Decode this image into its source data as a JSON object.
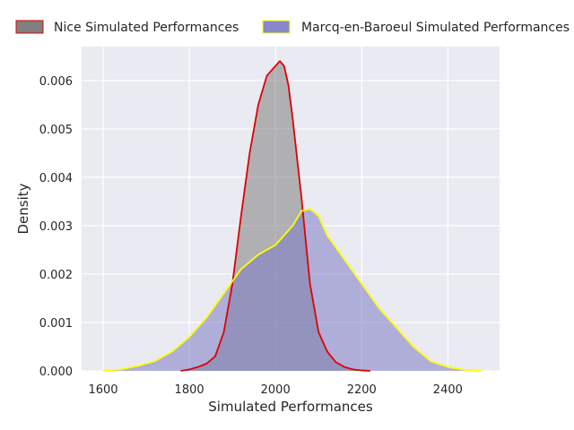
{
  "chart_data": {
    "type": "area",
    "title": "",
    "xlabel": "Simulated Performances",
    "ylabel": "Density",
    "xlim": [
      1550,
      2520
    ],
    "ylim": [
      0,
      0.0067
    ],
    "xticks": [
      1600,
      1800,
      2000,
      2200,
      2400
    ],
    "yticks": [
      0.0,
      0.001,
      0.002,
      0.003,
      0.004,
      0.005,
      0.006
    ],
    "ytick_labels": [
      "0.000",
      "0.001",
      "0.002",
      "0.003",
      "0.004",
      "0.005",
      "0.006"
    ],
    "grid": true,
    "legend_placement": "top, above plot",
    "background": "#eaeaf2",
    "series": [
      {
        "name": "Nice Simulated Performances",
        "fill": "#808080",
        "stroke": "#e00000",
        "x": [
          1780,
          1800,
          1820,
          1840,
          1860,
          1880,
          1900,
          1920,
          1940,
          1960,
          1980,
          2000,
          2010,
          2020,
          2030,
          2040,
          2060,
          2080,
          2100,
          2120,
          2140,
          2160,
          2180,
          2200,
          2220
        ],
        "y": [
          0.0,
          3e-05,
          8e-05,
          0.00015,
          0.0003,
          0.0008,
          0.0018,
          0.0032,
          0.0045,
          0.0055,
          0.0061,
          0.0063,
          0.0064,
          0.0063,
          0.0059,
          0.0052,
          0.0036,
          0.0018,
          0.0008,
          0.0004,
          0.00018,
          8e-05,
          3e-05,
          1e-05,
          0.0
        ]
      },
      {
        "name": "Marcq-en-Baroeul Simulated Performances",
        "fill": "#7b7bc4",
        "stroke": "#ffff00",
        "x": [
          1600,
          1640,
          1680,
          1720,
          1760,
          1800,
          1840,
          1880,
          1920,
          1960,
          2000,
          2040,
          2060,
          2080,
          2100,
          2120,
          2160,
          2200,
          2240,
          2280,
          2320,
          2360,
          2400,
          2440,
          2480
        ],
        "y": [
          0.0,
          3e-05,
          0.0001,
          0.0002,
          0.0004,
          0.0007,
          0.0011,
          0.0016,
          0.0021,
          0.0024,
          0.0026,
          0.003,
          0.0033,
          0.00335,
          0.0032,
          0.0028,
          0.0023,
          0.0018,
          0.0013,
          0.0009,
          0.0005,
          0.0002,
          8e-05,
          2e-05,
          0.0
        ]
      }
    ]
  }
}
